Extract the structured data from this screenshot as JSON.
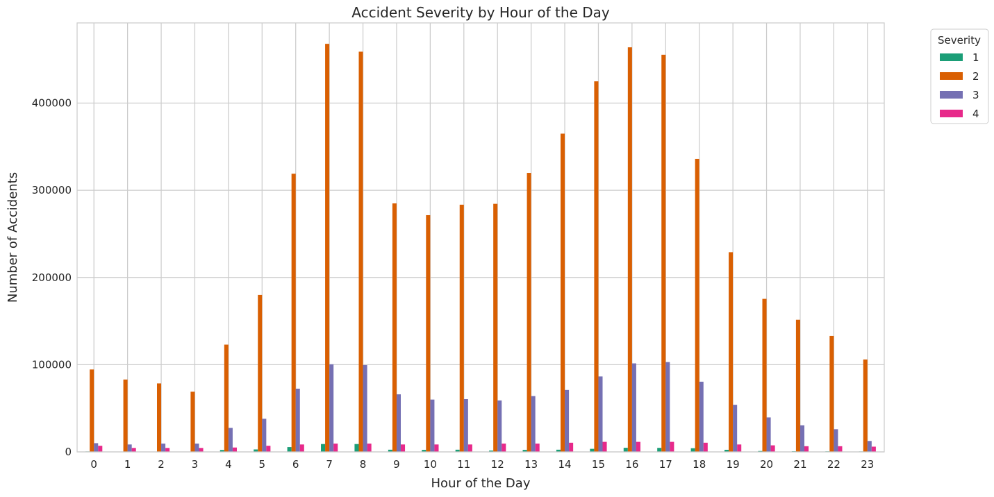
{
  "chart_data": {
    "type": "bar",
    "title": "Accident Severity by Hour of the Day",
    "xlabel": "Hour of the Day",
    "ylabel": "Number of Accidents",
    "categories": [
      "0",
      "1",
      "2",
      "3",
      "4",
      "5",
      "6",
      "7",
      "8",
      "9",
      "10",
      "11",
      "12",
      "13",
      "14",
      "15",
      "16",
      "17",
      "18",
      "19",
      "20",
      "21",
      "22",
      "23"
    ],
    "ylim": [
      0,
      492000
    ],
    "yticks": [
      0,
      100000,
      200000,
      300000,
      400000
    ],
    "grid": true,
    "legend": {
      "title": "Severity",
      "placement": "outside-top-right"
    },
    "series": [
      {
        "name": "1",
        "color": "#1b9e77",
        "values": [
          500,
          400,
          400,
          300,
          2200,
          2800,
          5500,
          9000,
          9000,
          2500,
          2300,
          2500,
          1500,
          2300,
          2500,
          3500,
          4700,
          4600,
          4200,
          2400,
          1000,
          700,
          600,
          500
        ]
      },
      {
        "name": "2",
        "color": "#d95f02",
        "values": [
          94500,
          83000,
          78500,
          69000,
          123000,
          180000,
          319000,
          468000,
          459000,
          285000,
          271500,
          283500,
          284500,
          320000,
          365000,
          425000,
          464000,
          455500,
          336000,
          229000,
          175500,
          151500,
          133000,
          106000
        ]
      },
      {
        "name": "3",
        "color": "#7570b3",
        "values": [
          10000,
          8500,
          9500,
          9500,
          27500,
          38000,
          72500,
          100500,
          99500,
          66000,
          60000,
          60500,
          59000,
          64000,
          71000,
          86500,
          101500,
          103000,
          80500,
          54000,
          39500,
          30500,
          26000,
          12500
        ]
      },
      {
        "name": "4",
        "color": "#e7298a",
        "values": [
          7000,
          4500,
          4500,
          4500,
          5000,
          7000,
          8500,
          9500,
          9500,
          8500,
          8500,
          8500,
          9500,
          9500,
          10500,
          11500,
          11500,
          11500,
          10500,
          8500,
          7500,
          6500,
          6500,
          6000
        ]
      }
    ]
  }
}
